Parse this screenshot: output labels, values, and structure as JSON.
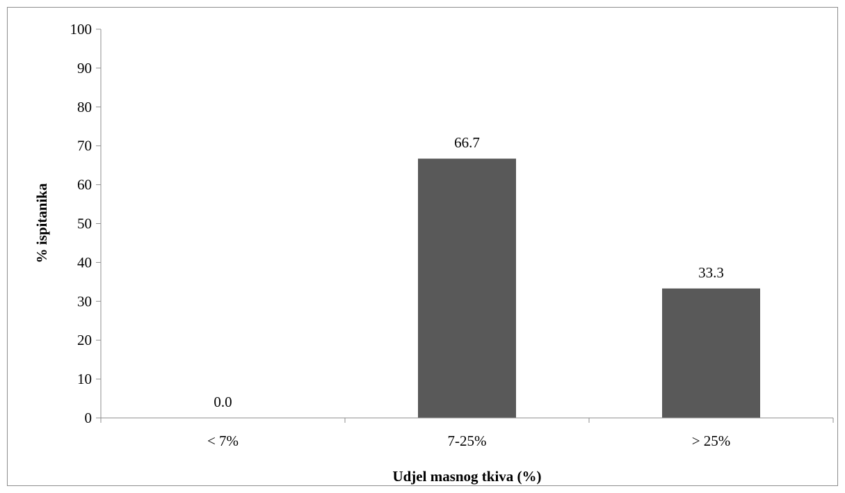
{
  "chart_data": {
    "type": "bar",
    "categories": [
      "< 7%",
      "7-25%",
      "> 25%"
    ],
    "values": [
      0.0,
      66.7,
      33.3
    ],
    "data_labels": [
      "0.0",
      "66.7",
      "33.3"
    ],
    "title": "",
    "xlabel": "Udjel masnog tkiva (%)",
    "ylabel": "% ispitanika",
    "ylim": [
      0,
      100
    ],
    "yticks": [
      "0",
      "10",
      "20",
      "30",
      "40",
      "50",
      "60",
      "70",
      "80",
      "90",
      "100"
    ],
    "grid": false,
    "legend": "none",
    "colors": {
      "bar": "#595959",
      "axis": "#8c8c8c",
      "frame": "#8c8c8c",
      "text": "#000000"
    }
  }
}
